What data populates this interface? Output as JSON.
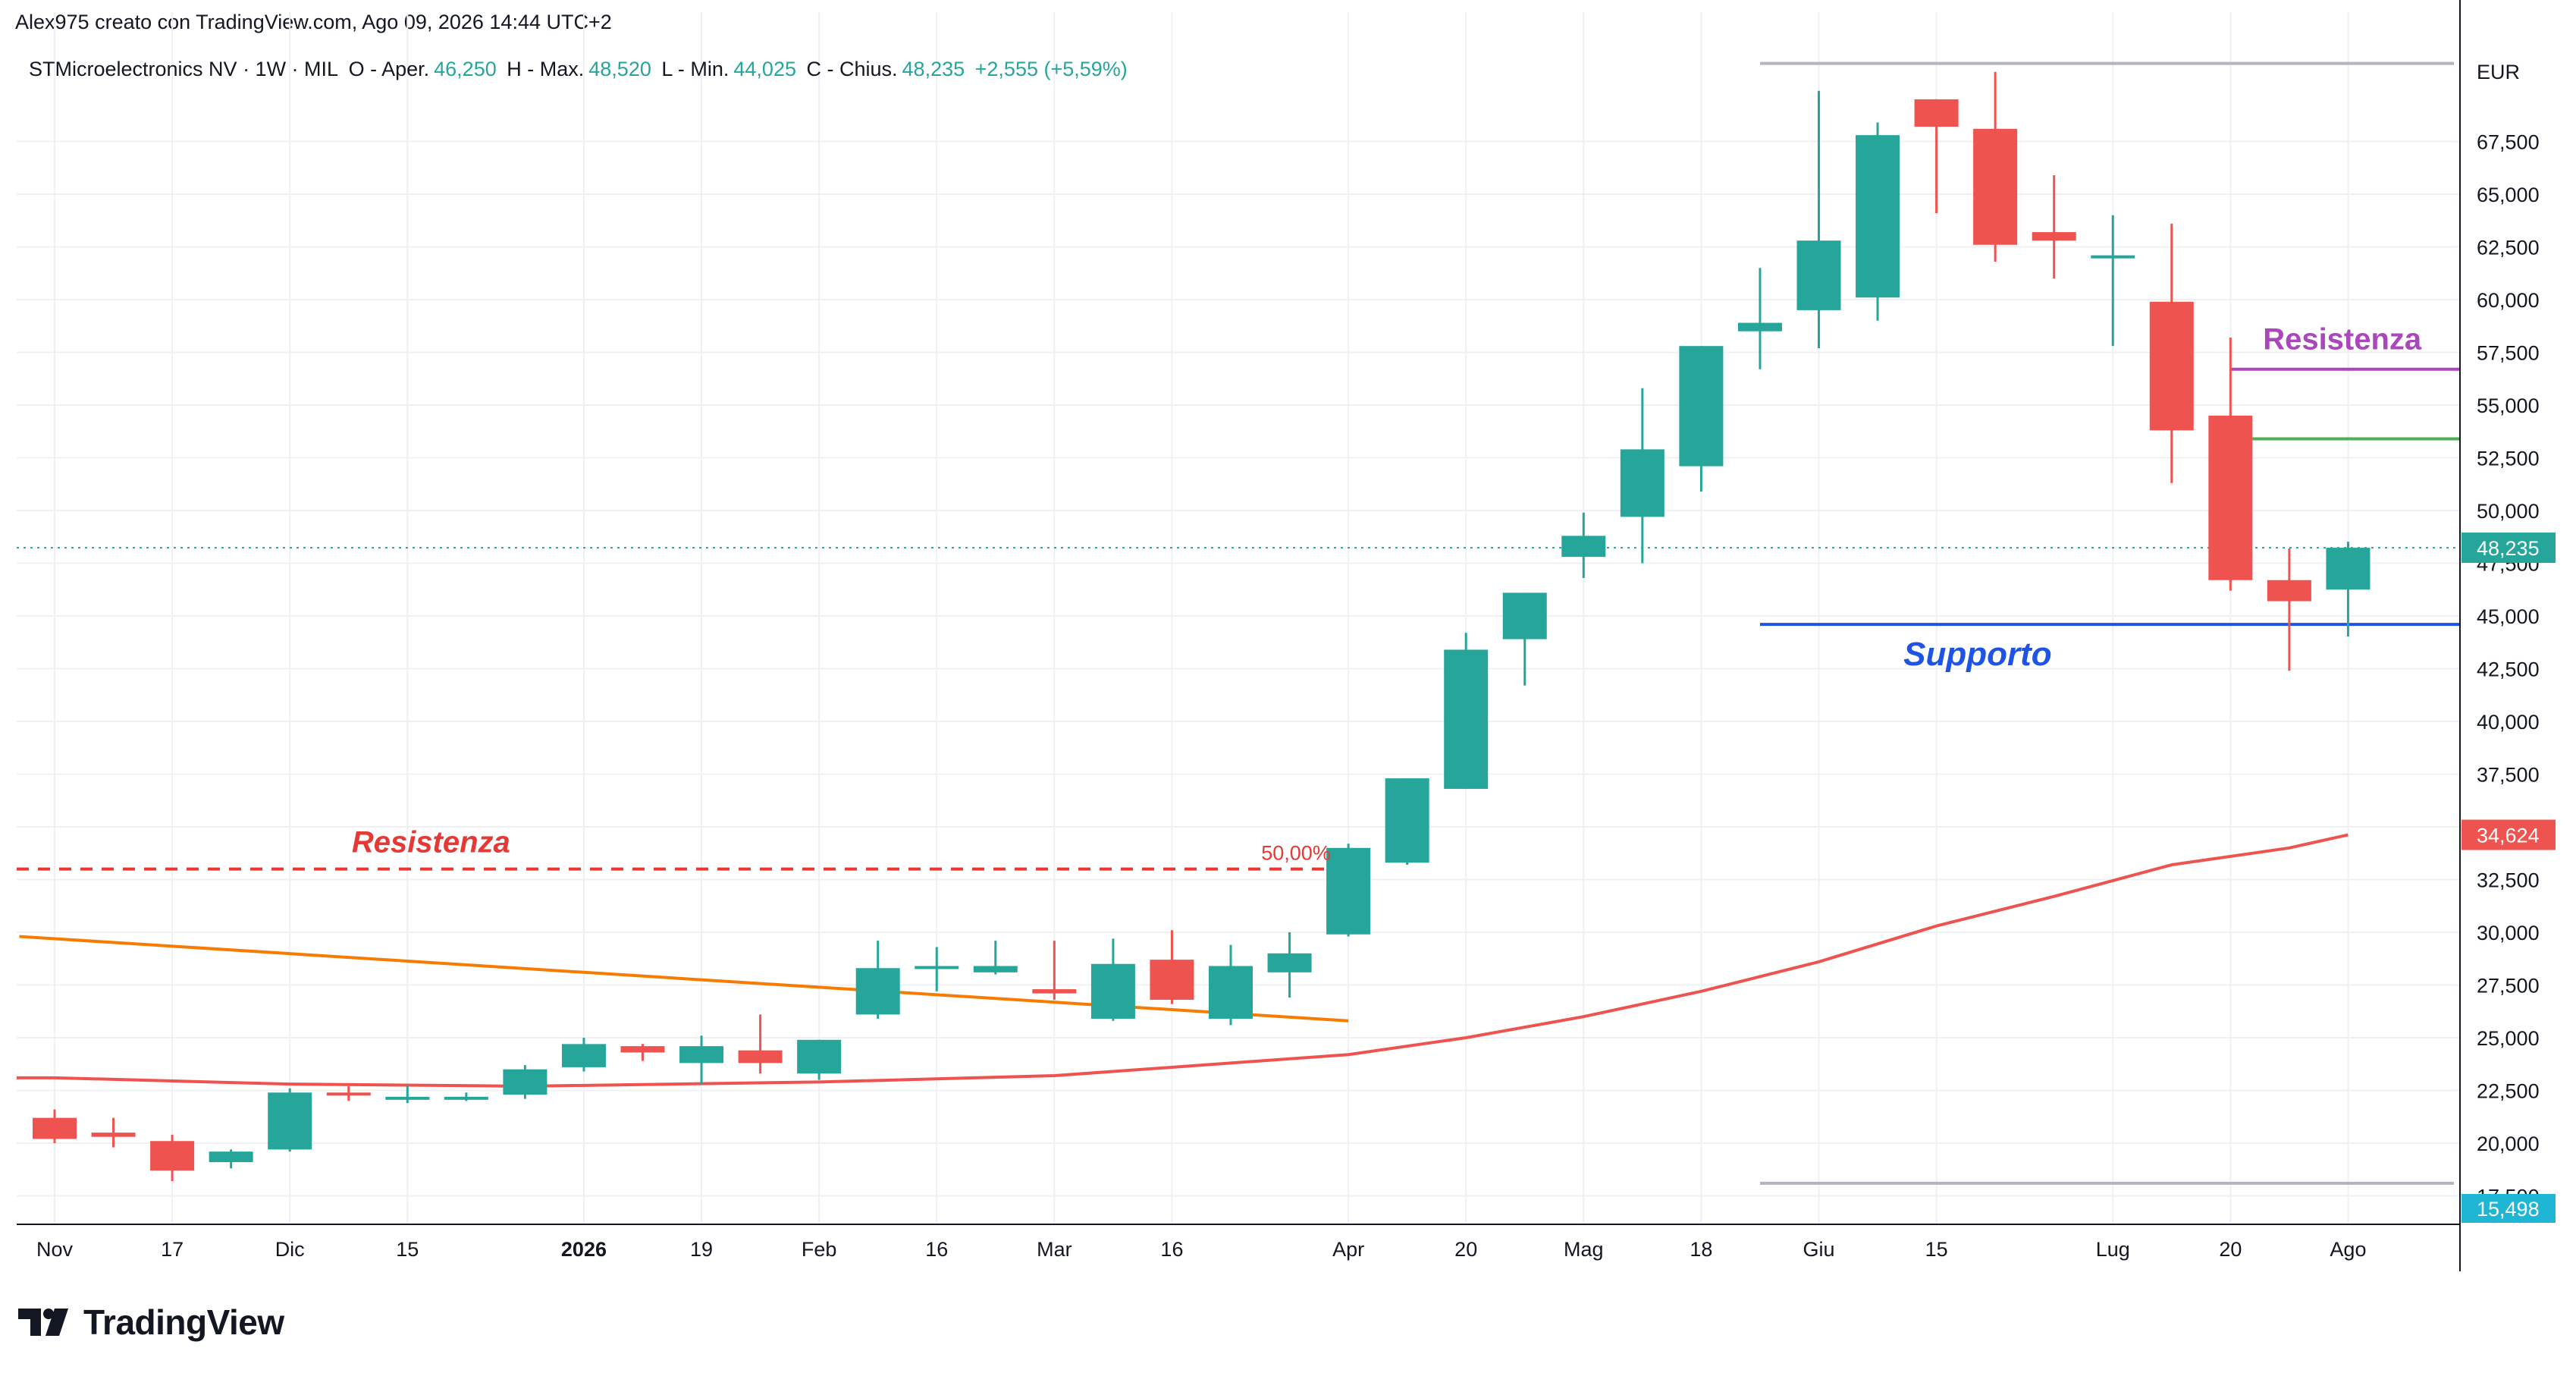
{
  "header": {
    "credit": "Alex975 creato con TradingView.com, Ago 09, 2026 14:44 UTC+2"
  },
  "legend": {
    "symbol": "STMicroelectronics NV · 1W · MIL",
    "open_label": "O - Aper.",
    "open_value": "46,250",
    "high_label": "H - Max.",
    "high_value": "48,520",
    "low_label": "L - Min.",
    "low_value": "44,025",
    "close_label": "C - Chius.",
    "close_value": "48,235",
    "change": "+2,555 (+5,59%)"
  },
  "colors": {
    "up": "#26a69a",
    "down": "#ef5350",
    "ma": "#ef5350",
    "trendline": "#f57c00",
    "support": "#1e53e5",
    "resist_purple": "#ab47bc",
    "resist_green": "#4caf50",
    "resist_red": "#e53935",
    "grid": "#eef0f3",
    "range_line": "#b2b5be"
  },
  "brand": {
    "name": "TradingView"
  },
  "chart_data": {
    "type": "candlestick",
    "currency": "EUR",
    "y_ticks": [
      "17,500",
      "20,000",
      "22,500",
      "25,000",
      "27,500",
      "30,000",
      "32,500",
      "35,000",
      "37,500",
      "40,000",
      "42,500",
      "45,000",
      "47,500",
      "50,000",
      "52,500",
      "55,000",
      "57,500",
      "60,000",
      "62,500",
      "65,000",
      "67,500"
    ],
    "y_tick_values": [
      17.5,
      20,
      22.5,
      25,
      27.5,
      30,
      32.5,
      35,
      37.5,
      40,
      42.5,
      45,
      47.5,
      50,
      52.5,
      55,
      57.5,
      60,
      62.5,
      65,
      67.5
    ],
    "x_ticks": [
      {
        "label": "Nov",
        "index": 0,
        "bold": false
      },
      {
        "label": "17",
        "index": 2,
        "bold": false
      },
      {
        "label": "Dic",
        "index": 4,
        "bold": false
      },
      {
        "label": "15",
        "index": 6,
        "bold": false
      },
      {
        "label": "2026",
        "index": 9,
        "bold": true
      },
      {
        "label": "19",
        "index": 11,
        "bold": false
      },
      {
        "label": "Feb",
        "index": 13,
        "bold": false
      },
      {
        "label": "16",
        "index": 15,
        "bold": false
      },
      {
        "label": "Mar",
        "index": 17,
        "bold": false
      },
      {
        "label": "16",
        "index": 19,
        "bold": false
      },
      {
        "label": "Apr",
        "index": 22,
        "bold": false
      },
      {
        "label": "20",
        "index": 24,
        "bold": false
      },
      {
        "label": "Mag",
        "index": 26,
        "bold": false
      },
      {
        "label": "18",
        "index": 28,
        "bold": false
      },
      {
        "label": "Giu",
        "index": 30,
        "bold": false
      },
      {
        "label": "15",
        "index": 32,
        "bold": false
      },
      {
        "label": "Lug",
        "index": 35,
        "bold": false
      },
      {
        "label": "20",
        "index": 37,
        "bold": false
      },
      {
        "label": "Ago",
        "index": 39,
        "bold": false
      }
    ],
    "candles": [
      {
        "o": 21.2,
        "h": 21.6,
        "l": 20.0,
        "c": 20.2
      },
      {
        "o": 20.5,
        "h": 21.2,
        "l": 19.8,
        "c": 20.3
      },
      {
        "o": 20.1,
        "h": 20.4,
        "l": 18.2,
        "c": 18.7
      },
      {
        "o": 19.1,
        "h": 19.7,
        "l": 18.8,
        "c": 19.6
      },
      {
        "o": 19.7,
        "h": 22.6,
        "l": 19.6,
        "c": 22.4
      },
      {
        "o": 22.4,
        "h": 22.7,
        "l": 22.0,
        "c": 22.3
      },
      {
        "o": 22.1,
        "h": 22.7,
        "l": 21.9,
        "c": 22.2
      },
      {
        "o": 22.2,
        "h": 22.4,
        "l": 22.0,
        "c": 22.2
      },
      {
        "o": 22.3,
        "h": 23.7,
        "l": 22.1,
        "c": 23.5
      },
      {
        "o": 23.6,
        "h": 25.0,
        "l": 23.4,
        "c": 24.7
      },
      {
        "o": 24.6,
        "h": 24.7,
        "l": 23.9,
        "c": 24.3
      },
      {
        "o": 23.8,
        "h": 25.1,
        "l": 22.8,
        "c": 24.6
      },
      {
        "o": 24.4,
        "h": 26.1,
        "l": 23.3,
        "c": 23.8
      },
      {
        "o": 23.3,
        "h": 24.9,
        "l": 23.0,
        "c": 24.9
      },
      {
        "o": 26.1,
        "h": 29.6,
        "l": 25.9,
        "c": 28.3
      },
      {
        "o": 28.3,
        "h": 29.3,
        "l": 27.2,
        "c": 28.4
      },
      {
        "o": 28.1,
        "h": 29.6,
        "l": 28.0,
        "c": 28.4
      },
      {
        "o": 27.3,
        "h": 29.6,
        "l": 26.8,
        "c": 27.1
      },
      {
        "o": 25.9,
        "h": 29.7,
        "l": 25.8,
        "c": 28.5
      },
      {
        "o": 28.7,
        "h": 30.1,
        "l": 26.6,
        "c": 26.8
      },
      {
        "o": 25.9,
        "h": 29.4,
        "l": 25.6,
        "c": 28.4
      },
      {
        "o": 28.1,
        "h": 30.0,
        "l": 26.9,
        "c": 29.0
      },
      {
        "o": 29.9,
        "h": 34.2,
        "l": 29.8,
        "c": 34.0
      },
      {
        "o": 33.3,
        "h": 37.3,
        "l": 33.2,
        "c": 37.3
      },
      {
        "o": 36.8,
        "h": 44.2,
        "l": 36.8,
        "c": 43.4
      },
      {
        "o": 43.9,
        "h": 46.1,
        "l": 41.7,
        "c": 46.1
      },
      {
        "o": 47.8,
        "h": 49.9,
        "l": 46.8,
        "c": 48.8
      },
      {
        "o": 49.7,
        "h": 55.8,
        "l": 47.5,
        "c": 52.9
      },
      {
        "o": 52.1,
        "h": 57.8,
        "l": 50.9,
        "c": 57.8
      },
      {
        "o": 58.5,
        "h": 61.5,
        "l": 56.7,
        "c": 58.9
      },
      {
        "o": 59.5,
        "h": 69.9,
        "l": 57.7,
        "c": 62.8
      },
      {
        "o": 60.1,
        "h": 68.4,
        "l": 59.0,
        "c": 67.8
      },
      {
        "o": 69.5,
        "h": 69.5,
        "l": 64.1,
        "c": 68.2
      },
      {
        "o": 68.1,
        "h": 70.8,
        "l": 61.8,
        "c": 62.6
      },
      {
        "o": 63.2,
        "h": 65.9,
        "l": 61.0,
        "c": 62.8
      },
      {
        "o": 62.1,
        "h": 64.0,
        "l": 57.8,
        "c": 62.1
      },
      {
        "o": 59.9,
        "h": 63.6,
        "l": 51.3,
        "c": 53.8
      },
      {
        "o": 54.5,
        "h": 58.2,
        "l": 46.2,
        "c": 46.7
      },
      {
        "o": 46.7,
        "h": 48.2,
        "l": 42.4,
        "c": 45.7
      },
      {
        "o": 46.25,
        "h": 48.52,
        "l": 44.025,
        "c": 48.235
      }
    ],
    "moving_average": {
      "last_value": "34,624",
      "points": [
        {
          "i": 0,
          "v": 23.1
        },
        {
          "i": 4,
          "v": 22.8
        },
        {
          "i": 8,
          "v": 22.7
        },
        {
          "i": 13,
          "v": 22.9
        },
        {
          "i": 17,
          "v": 23.2
        },
        {
          "i": 20,
          "v": 23.8
        },
        {
          "i": 22,
          "v": 24.2
        },
        {
          "i": 24,
          "v": 25.0
        },
        {
          "i": 26,
          "v": 26.0
        },
        {
          "i": 28,
          "v": 27.2
        },
        {
          "i": 30,
          "v": 28.6
        },
        {
          "i": 32,
          "v": 30.3
        },
        {
          "i": 34,
          "v": 31.7
        },
        {
          "i": 36,
          "v": 33.2
        },
        {
          "i": 38,
          "v": 34.0
        },
        {
          "i": 39,
          "v": 34.62
        }
      ]
    },
    "last_price_label": "48,235",
    "last_price_value": 48.235,
    "lower_label": "15,498",
    "range_high": 71.2,
    "range_low": 18.1,
    "annotations": {
      "resistance_top": {
        "text": "Resistenza",
        "value": 56.7,
        "from_index": 37.0
      },
      "resistance_green": {
        "value": 53.4,
        "from_index": 37.0
      },
      "support": {
        "text": "Supporto",
        "value": 44.6,
        "from_index": 29.0
      },
      "resistance_bottom": {
        "text": "Resistenza",
        "value": 33.0,
        "pct_label": "50,00%",
        "to_index": 21.7
      },
      "trendline": {
        "from_index": -0.6,
        "from_value": 29.8,
        "to_index": 22.0,
        "to_value": 25.8
      }
    }
  }
}
